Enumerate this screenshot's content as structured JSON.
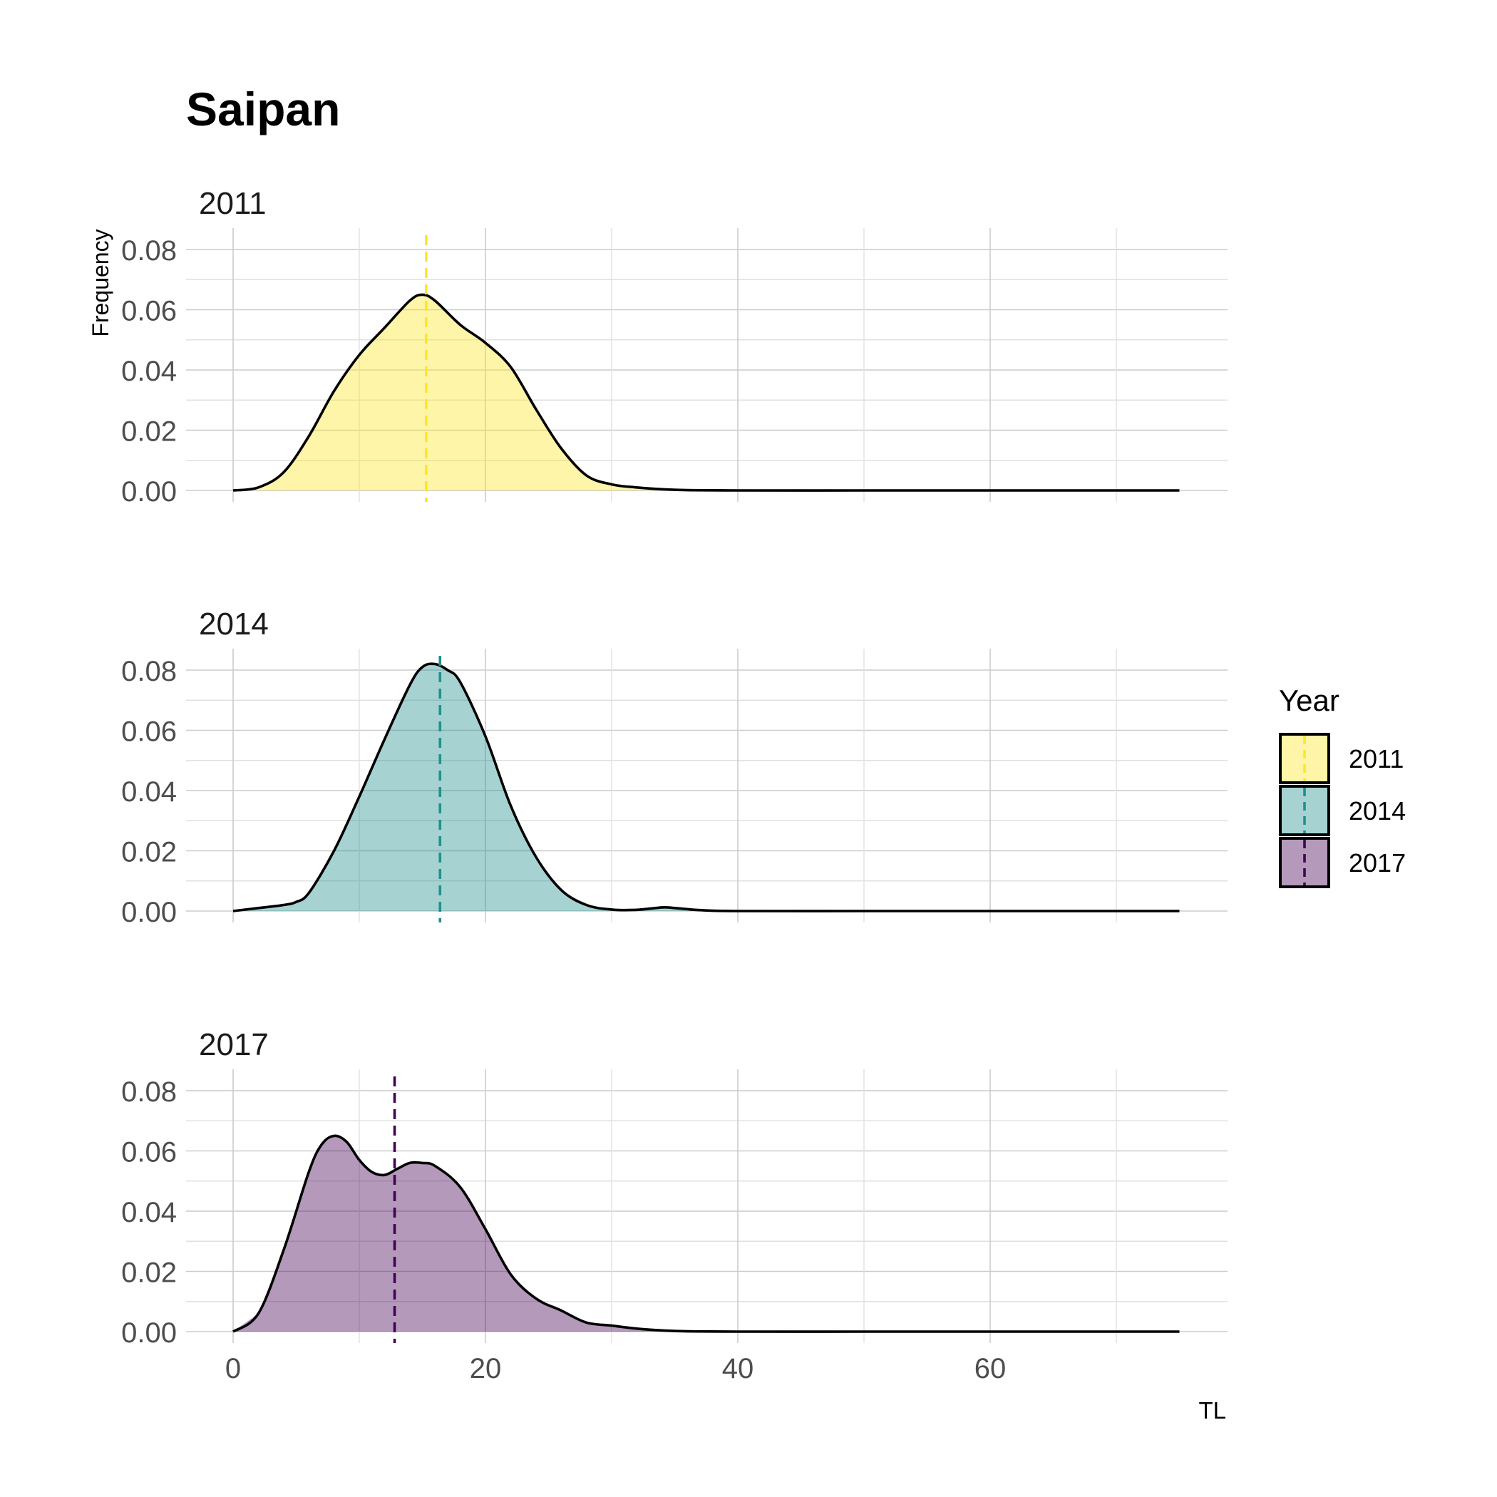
{
  "chart_data": {
    "type": "area",
    "title": "Saipan",
    "xlabel": "TL",
    "ylabel": "Frequency",
    "xlim": [
      -3,
      78
    ],
    "ylim": [
      0,
      0.086
    ],
    "x_ticks": [
      0,
      20,
      40,
      60
    ],
    "x_tick_labels": [
      "0",
      "20",
      "40",
      "60"
    ],
    "y_ticks": [
      0,
      0.02,
      0.04,
      0.06,
      0.08
    ],
    "y_tick_labels": [
      "0.00",
      "0.02",
      "0.04",
      "0.06",
      "0.08"
    ],
    "grid": true,
    "legend": {
      "title": "Year",
      "position": "right"
    },
    "panels": [
      {
        "label": "2011",
        "color": "#FDE725",
        "fill": "#FDE725",
        "mean_line": 15.3,
        "x": [
          0,
          2,
          4,
          6,
          8,
          10,
          12,
          14,
          15,
          16,
          18,
          20,
          22,
          24,
          26,
          28,
          30,
          32,
          34,
          36,
          40,
          50,
          60,
          70,
          75
        ],
        "y": [
          0.0,
          0.001,
          0.006,
          0.018,
          0.033,
          0.045,
          0.054,
          0.063,
          0.065,
          0.063,
          0.055,
          0.049,
          0.041,
          0.027,
          0.014,
          0.005,
          0.002,
          0.001,
          0.0004,
          0.0001,
          0.0,
          0.0,
          0.0,
          0.0,
          0.0
        ]
      },
      {
        "label": "2014",
        "color": "#21908C",
        "fill": "#21908C",
        "mean_line": 16.4,
        "x": [
          0,
          2,
          4,
          5,
          6,
          8,
          10,
          12,
          14,
          15,
          16,
          17,
          18,
          20,
          22,
          24,
          26,
          28,
          30,
          32,
          34,
          35,
          37,
          40,
          50,
          60,
          70,
          75
        ],
        "y": [
          0.0,
          0.001,
          0.002,
          0.003,
          0.006,
          0.02,
          0.038,
          0.057,
          0.075,
          0.081,
          0.082,
          0.08,
          0.076,
          0.058,
          0.035,
          0.018,
          0.007,
          0.002,
          0.0005,
          0.0004,
          0.0012,
          0.001,
          0.0003,
          0.0,
          0.0,
          0.0,
          0.0,
          0.0
        ]
      },
      {
        "label": "2017",
        "color": "#440154",
        "fill": "#440154",
        "mean_line": 12.8,
        "x": [
          0,
          2,
          4,
          6,
          7,
          8,
          9,
          10,
          11,
          12,
          13,
          14,
          15,
          16,
          18,
          20,
          22,
          24,
          26,
          28,
          30,
          32,
          34,
          36,
          40,
          50,
          60,
          70,
          75
        ],
        "y": [
          0.0,
          0.006,
          0.027,
          0.053,
          0.062,
          0.065,
          0.063,
          0.057,
          0.053,
          0.052,
          0.054,
          0.056,
          0.056,
          0.055,
          0.048,
          0.034,
          0.019,
          0.011,
          0.007,
          0.003,
          0.002,
          0.001,
          0.0004,
          0.0001,
          0.0,
          0.0,
          0.0,
          0.0,
          0.0
        ]
      }
    ]
  }
}
